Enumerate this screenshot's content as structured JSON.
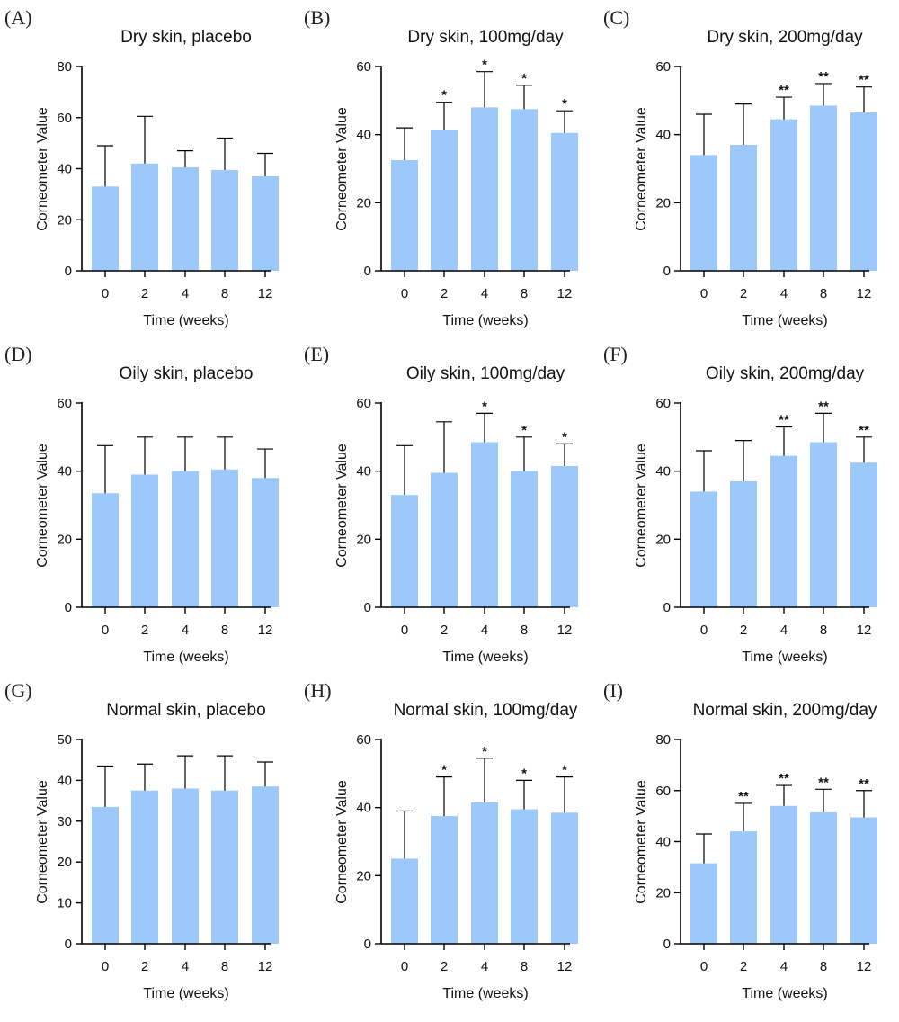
{
  "colors": {
    "bar": "#9DC8FA",
    "axis": "#000000"
  },
  "chart_data": [
    {
      "type": "bar",
      "panel_label": "(A)",
      "title": "Dry skin, placebo",
      "xlabel": "Time (weeks)",
      "ylabel": "Corneometer Value",
      "ylim": [
        0,
        80
      ],
      "yticks": [
        "0",
        "20",
        "40",
        "60",
        "80"
      ],
      "categories": [
        "0",
        "2",
        "4",
        "8",
        "12"
      ],
      "values": [
        33,
        42,
        40.5,
        39.5,
        37
      ],
      "error_upper": [
        49,
        60.5,
        47,
        52,
        46
      ],
      "significance": [
        "",
        "",
        "",
        "",
        ""
      ]
    },
    {
      "type": "bar",
      "panel_label": "(B)",
      "title": "Dry skin, 100mg/day",
      "xlabel": "Time (weeks)",
      "ylabel": "Corneometer Value",
      "ylim": [
        0,
        60
      ],
      "yticks": [
        "0",
        "20",
        "40",
        "60"
      ],
      "categories": [
        "0",
        "2",
        "4",
        "8",
        "12"
      ],
      "values": [
        32.5,
        41.5,
        48,
        47.5,
        40.5
      ],
      "error_upper": [
        42,
        49.5,
        58.5,
        54.5,
        47
      ],
      "significance": [
        "",
        "*",
        "*",
        "*",
        "*"
      ]
    },
    {
      "type": "bar",
      "panel_label": "(C)",
      "title": "Dry skin, 200mg/day",
      "xlabel": "Time (weeks)",
      "ylabel": "Corneometer Value",
      "ylim": [
        0,
        60
      ],
      "yticks": [
        "0",
        "20",
        "40",
        "60"
      ],
      "categories": [
        "0",
        "2",
        "4",
        "8",
        "12"
      ],
      "values": [
        34,
        37,
        44.5,
        48.5,
        46.5
      ],
      "error_upper": [
        46,
        49,
        51,
        55,
        54
      ],
      "significance": [
        "",
        "",
        "**",
        "**",
        "**"
      ]
    },
    {
      "type": "bar",
      "panel_label": "(D)",
      "title": "Oily skin, placebo",
      "xlabel": "Time (weeks)",
      "ylabel": "Corneometer Value",
      "ylim": [
        0,
        60
      ],
      "yticks": [
        "0",
        "20",
        "40",
        "60"
      ],
      "categories": [
        "0",
        "2",
        "4",
        "8",
        "12"
      ],
      "values": [
        33.5,
        39,
        40,
        40.5,
        38
      ],
      "error_upper": [
        47.5,
        50,
        50,
        50,
        46.5
      ],
      "significance": [
        "",
        "",
        "",
        "",
        ""
      ]
    },
    {
      "type": "bar",
      "panel_label": "(E)",
      "title": "Oily skin, 100mg/day",
      "xlabel": "Time (weeks)",
      "ylabel": "Corneometer Value",
      "ylim": [
        0,
        60
      ],
      "yticks": [
        "0",
        "20",
        "40",
        "60"
      ],
      "categories": [
        "0",
        "2",
        "4",
        "8",
        "12"
      ],
      "values": [
        33,
        39.5,
        48.5,
        40,
        41.5
      ],
      "error_upper": [
        47.5,
        54.5,
        57,
        50,
        48
      ],
      "significance": [
        "",
        "",
        "*",
        "*",
        "*"
      ]
    },
    {
      "type": "bar",
      "panel_label": "(F)",
      "title": "Oily skin, 200mg/day",
      "xlabel": "Time (weeks)",
      "ylabel": "Corneometer Value",
      "ylim": [
        0,
        60
      ],
      "yticks": [
        "0",
        "20",
        "40",
        "60"
      ],
      "categories": [
        "0",
        "2",
        "4",
        "8",
        "12"
      ],
      "values": [
        34,
        37,
        44.5,
        48.5,
        42.5
      ],
      "error_upper": [
        46,
        49,
        53,
        57,
        50
      ],
      "significance": [
        "",
        "",
        "**",
        "**",
        "**"
      ]
    },
    {
      "type": "bar",
      "panel_label": "(G)",
      "title": "Normal  skin, placebo",
      "xlabel": "Time (weeks)",
      "ylabel": "Corneometer Value",
      "ylim": [
        0,
        50
      ],
      "yticks": [
        "0",
        "10",
        "20",
        "30",
        "40",
        "50"
      ],
      "categories": [
        "0",
        "2",
        "4",
        "8",
        "12"
      ],
      "values": [
        33.5,
        37.5,
        38,
        37.5,
        38.5
      ],
      "error_upper": [
        43.5,
        44,
        46,
        46,
        44.5
      ],
      "significance": [
        "",
        "",
        "",
        "",
        ""
      ]
    },
    {
      "type": "bar",
      "panel_label": "(H)",
      "title": "Normal skin, 100mg/day",
      "xlabel": "Time (weeks)",
      "ylabel": "Corneometer Value",
      "ylim": [
        0,
        60
      ],
      "yticks": [
        "0",
        "20",
        "40",
        "60"
      ],
      "categories": [
        "0",
        "2",
        "4",
        "8",
        "12"
      ],
      "values": [
        25,
        37.5,
        41.5,
        39.5,
        38.5
      ],
      "error_upper": [
        39,
        49,
        54.5,
        48,
        49
      ],
      "significance": [
        "",
        "*",
        "*",
        "*",
        "*"
      ]
    },
    {
      "type": "bar",
      "panel_label": "(I)",
      "title": "Normal skin, 200mg/day",
      "xlabel": "Time (weeks)",
      "ylabel": "Corneometer Value",
      "ylim": [
        0,
        80
      ],
      "yticks": [
        "0",
        "20",
        "40",
        "60",
        "80"
      ],
      "categories": [
        "0",
        "2",
        "4",
        "8",
        "12"
      ],
      "values": [
        31.5,
        44,
        54,
        51.5,
        49.5
      ],
      "error_upper": [
        43,
        55,
        62,
        60.5,
        60
      ],
      "significance": [
        "",
        "**",
        "**",
        "**",
        "**"
      ]
    }
  ]
}
